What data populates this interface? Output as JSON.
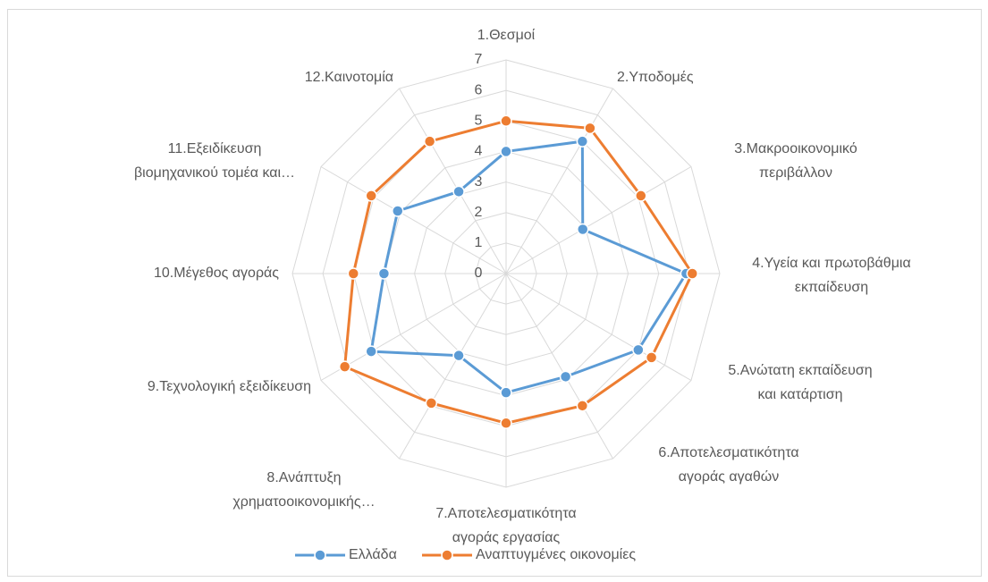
{
  "chart_data": {
    "type": "radar",
    "categories": [
      [
        "1.Θεσμοί"
      ],
      [
        "2.Υποδομές"
      ],
      [
        "3.Μακροοικονομικό",
        "περιβάλλον"
      ],
      [
        "4.Υγεία και πρωτοβάθμια",
        "εκπαίδευση"
      ],
      [
        "5.Ανώτατη εκπαίδευση",
        "και κατάρτιση"
      ],
      [
        "6.Αποτελεσματικότητα",
        "αγοράς αγαθών"
      ],
      [
        "7.Αποτελεσματικότητα",
        "αγοράς εργασίας"
      ],
      [
        "8.Ανάπτυξη",
        "χρηματοοικονομικής…"
      ],
      [
        "9.Τεχνολογική εξειδίκευση"
      ],
      [
        "10.Μέγεθος αγοράς"
      ],
      [
        "11.Εξειδίκευση",
        "βιομηχανικού τομέα και…"
      ],
      [
        "12.Καινοτομία"
      ]
    ],
    "series": [
      {
        "name": "Ελλάδα",
        "color": "#5b9bd5",
        "values": [
          4.0,
          5.0,
          2.9,
          5.9,
          5.0,
          3.9,
          3.9,
          3.1,
          5.1,
          4.0,
          4.1,
          3.1
        ]
      },
      {
        "name": "Αναπτυγμένες οικονομίες",
        "color": "#ed7d31",
        "values": [
          5.0,
          5.5,
          5.1,
          6.1,
          5.5,
          5.0,
          4.9,
          4.9,
          6.1,
          5.0,
          5.1,
          5.0
        ]
      }
    ],
    "ylim": [
      0,
      7
    ],
    "yticks": [
      0,
      1,
      2,
      3,
      4,
      5,
      6,
      7
    ],
    "grid": true,
    "legend": "bottom"
  }
}
